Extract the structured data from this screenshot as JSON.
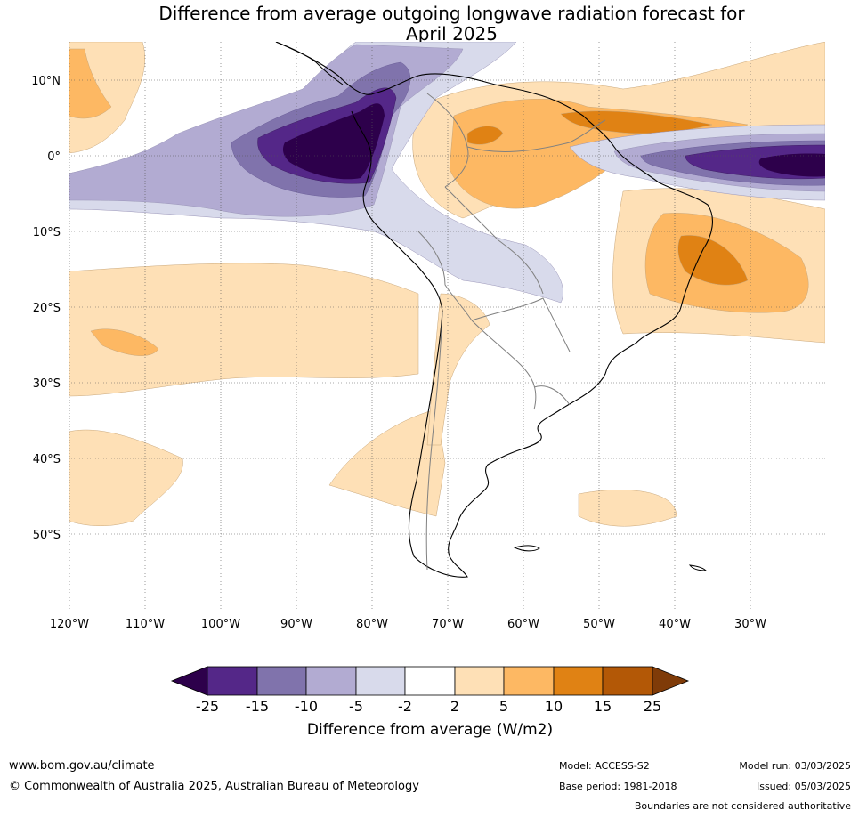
{
  "title_line1": "Difference from average outgoing longwave radiation forecast for",
  "title_line2": "April 2025",
  "lat_labels": [
    "10°N",
    "0°",
    "10°S",
    "20°S",
    "30°S",
    "40°S",
    "50°S"
  ],
  "lon_labels": [
    "120°W",
    "110°W",
    "100°W",
    "90°W",
    "80°W",
    "70°W",
    "60°W",
    "50°W",
    "40°W",
    "30°W"
  ],
  "colorbar": {
    "ticks": [
      "-25",
      "-15",
      "-10",
      "-5",
      "-2",
      "2",
      "5",
      "10",
      "15",
      "25"
    ],
    "label": "Difference from average (W/m2)",
    "colors": [
      "#2d004b",
      "#542788",
      "#8073ac",
      "#b2abd2",
      "#d8daeb",
      "#ffffff",
      "#fee0b6",
      "#fdb863",
      "#e08214",
      "#b35806",
      "#7f3b08"
    ]
  },
  "footer": {
    "website": "www.bom.gov.au/climate",
    "copyright": "© Commonwealth of Australia 2025, Australian Bureau of Meteorology",
    "model": "Model: ACCESS-S2",
    "base_period": "Base period: 1981-2018",
    "model_run": "Model run: 03/03/2025",
    "issued": "Issued: 05/03/2025",
    "disclaimer": "Boundaries are not considered authoritative"
  }
}
